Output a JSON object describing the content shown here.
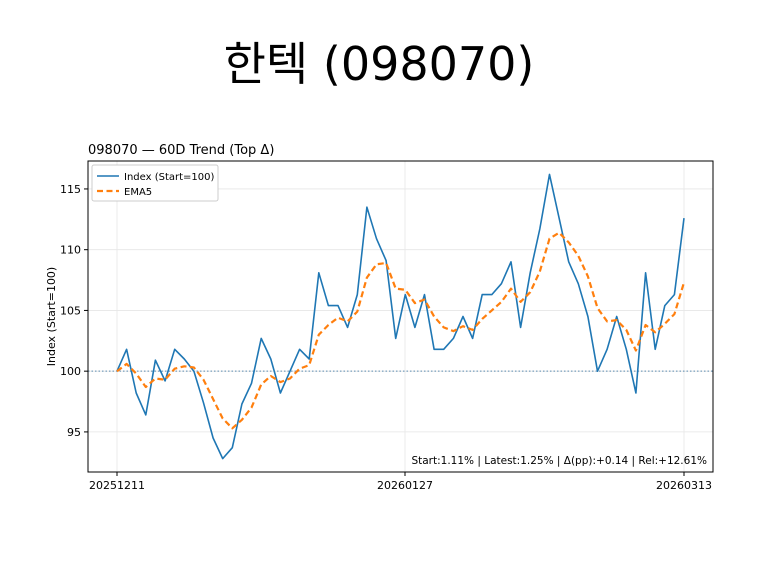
{
  "page": {
    "title": "한텍 (098070)"
  },
  "chart_data": {
    "type": "line",
    "title": "098070 — 60D Trend (Top Δ)",
    "xlabel": "",
    "ylabel": "Index (Start=100)",
    "x_tick_labels": [
      "20251211",
      "20260127",
      "20260313"
    ],
    "y_ticks": [
      95,
      100,
      105,
      110,
      115
    ],
    "ylim": [
      91.7,
      117.3
    ],
    "grid": true,
    "legend_position": "top-left",
    "reference_line": {
      "y": 100,
      "color": "#5b8bb0",
      "style": "dotted"
    },
    "annotation": "Start:1.11% | Latest:1.25% | Δ(pp):+0.14 | Rel:+12.61%",
    "series": [
      {
        "name": "Index (Start=100)",
        "color": "#1f77b4",
        "style": "solid",
        "values": [
          100.0,
          101.8,
          98.2,
          96.4,
          100.9,
          99.2,
          101.8,
          101.0,
          100.0,
          97.4,
          94.5,
          92.8,
          93.7,
          97.3,
          99.0,
          102.7,
          101.0,
          98.2,
          100.0,
          101.8,
          101.0,
          108.1,
          105.4,
          105.4,
          103.6,
          106.3,
          113.5,
          110.9,
          109.1,
          102.7,
          106.3,
          103.6,
          106.3,
          101.8,
          101.8,
          102.7,
          104.5,
          102.7,
          106.3,
          106.3,
          107.2,
          109.0,
          103.6,
          108.1,
          111.7,
          116.2,
          112.6,
          109.0,
          107.2,
          104.5,
          100.0,
          101.8,
          104.5,
          101.8,
          98.2,
          108.1,
          101.8,
          105.4,
          106.3,
          112.6
        ]
      },
      {
        "name": "EMA5",
        "color": "#ff7f0e",
        "style": "dashed",
        "values": [
          100.0,
          100.6,
          99.8,
          98.7,
          99.4,
          99.3,
          100.2,
          100.4,
          100.3,
          99.3,
          97.7,
          96.1,
          95.3,
          96.0,
          97.0,
          98.9,
          99.6,
          99.1,
          99.4,
          100.2,
          100.5,
          103.0,
          103.8,
          104.4,
          104.1,
          104.9,
          107.7,
          108.8,
          108.9,
          106.8,
          106.7,
          105.6,
          105.9,
          104.5,
          103.6,
          103.3,
          103.7,
          103.4,
          104.3,
          105.0,
          105.7,
          106.8,
          105.7,
          106.5,
          108.2,
          110.9,
          111.4,
          110.6,
          109.5,
          107.8,
          105.2,
          104.1,
          104.2,
          103.4,
          101.7,
          103.8,
          103.2,
          103.9,
          104.7,
          107.3
        ]
      }
    ]
  }
}
